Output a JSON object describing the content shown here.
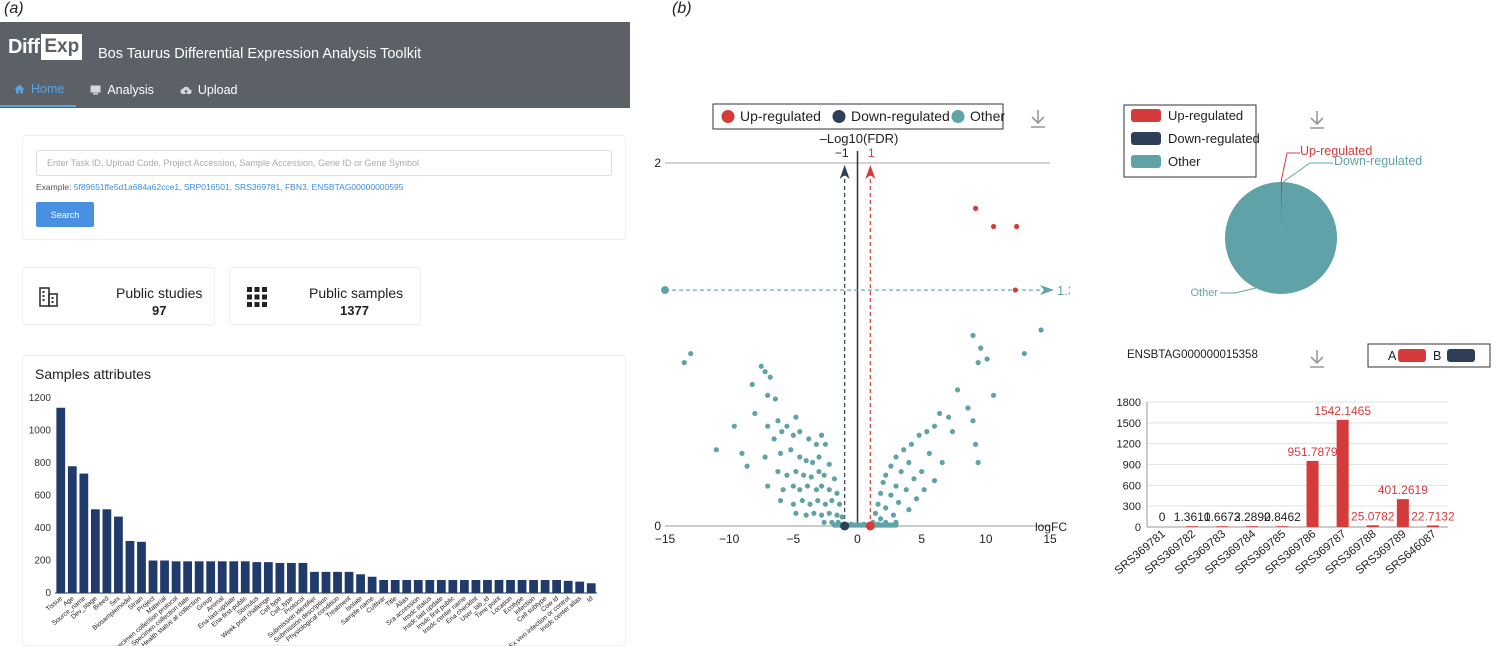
{
  "labels": {
    "a": "(a)",
    "b": "(b)"
  },
  "app": {
    "logo_part1": "Diff",
    "logo_part2": "Exp",
    "title": "Bos Taurus Differential Expression Analysis Toolkit",
    "tabs": [
      {
        "label": "Home",
        "icon": "home-icon",
        "active": true
      },
      {
        "label": "Analysis",
        "icon": "monitor-icon",
        "active": false
      },
      {
        "label": "Upload",
        "icon": "cloud-upload-icon",
        "active": false
      }
    ]
  },
  "search": {
    "placeholder": "Enter Task ID, Upload Code, Project Accession, Sample Accession, Gene ID or Gene Symbol",
    "value": "",
    "example_prefix": "Example:",
    "examples": [
      "5f89651ffe5d1a684a62cce1,",
      "SRP016501,",
      "SRS369781,",
      "FBN3,",
      "ENSBTAG00000000595"
    ],
    "button": "Search"
  },
  "stats": {
    "studies": {
      "label": "Public studies",
      "value": "97",
      "icon": "building-icon"
    },
    "samples": {
      "label": "Public samples",
      "value": "1377",
      "icon": "grid-icon"
    }
  },
  "attributes": {
    "title": "Samples attributes",
    "chart_data": {
      "type": "bar",
      "color": "#1f3a6b",
      "ylim": [
        0,
        1200
      ],
      "yticks": [
        "0",
        "200",
        "400",
        "600",
        "800",
        "1000",
        "1200"
      ],
      "categories": [
        "Tissue",
        "Age",
        "Source_name",
        "Dev_stage",
        "Breed",
        "Sex",
        "Biosamplemodel",
        "Strain",
        "Project",
        "Material",
        "Specimen collection protocol",
        "Specimen collection date",
        "Health status at collection",
        "Group",
        "Animal",
        "Ena-last-update",
        "Ena-first-public",
        "Stimulus",
        "Week post challenge",
        "Cell type",
        "Cell_type",
        "Protocol",
        "Submission identifier",
        "Submission description",
        "Physiological condition",
        "Treatment",
        "Isolate",
        "Sample name",
        "Cultivar",
        "Title",
        "Alias",
        "Sra accession",
        "Insdc status",
        "Insdc last update",
        "Insdc first public",
        "Insdc center name",
        "Ena checklist",
        "User_lab_id",
        "Time point",
        "Location",
        "Ecotype",
        "Infection",
        "Cell subtype",
        "Cow id",
        "Ex vivo infection or control",
        "Insdc center alias",
        "Id"
      ],
      "values": [
        1140,
        780,
        735,
        515,
        515,
        470,
        320,
        315,
        200,
        200,
        195,
        195,
        195,
        195,
        195,
        195,
        195,
        190,
        190,
        185,
        185,
        185,
        130,
        130,
        130,
        130,
        115,
        100,
        80,
        80,
        80,
        80,
        80,
        80,
        80,
        80,
        80,
        80,
        80,
        80,
        80,
        80,
        80,
        80,
        75,
        70,
        60
      ]
    }
  },
  "volcano": {
    "legend": [
      "Up-regulated",
      "Down-regulated",
      "Other"
    ],
    "colors": {
      "up": "#d63b3b",
      "down": "#2f3f57",
      "other": "#5fa3a8"
    },
    "download_icon": "download-icon",
    "chart_data": {
      "type": "scatter",
      "ylabel": "–Log10(FDR)",
      "xlabel": "logFC",
      "xlim": [
        -15,
        15
      ],
      "xticks": [
        "−15",
        "−10",
        "−5",
        "0",
        "5",
        "10",
        "15"
      ],
      "ylim": [
        0,
        2
      ],
      "yticks": [
        "0",
        "2"
      ],
      "neg_threshold_label": "−1",
      "pos_threshold_label": "1",
      "fdr_threshold_label": "1.3",
      "up": [
        [
          9.2,
          1.75
        ],
        [
          10.6,
          1.65
        ],
        [
          12.4,
          1.65
        ],
        [
          12.3,
          1.3
        ],
        [
          1.0,
          0.0
        ]
      ],
      "down": [
        [
          -1.0,
          0.0
        ]
      ],
      "other": [
        [
          -15.0,
          1.3
        ],
        [
          -13.0,
          0.95
        ],
        [
          -13.5,
          0.9
        ],
        [
          -7.5,
          0.88
        ],
        [
          -7.2,
          0.85
        ],
        [
          -6.8,
          0.82
        ],
        [
          -8.2,
          0.78
        ],
        [
          -7.0,
          0.72
        ],
        [
          -6.4,
          0.7
        ],
        [
          -8.0,
          0.62
        ],
        [
          -7.0,
          0.55
        ],
        [
          -6.2,
          0.58
        ],
        [
          -5.5,
          0.55
        ],
        [
          -4.8,
          0.6
        ],
        [
          -9.6,
          0.55
        ],
        [
          -6.5,
          0.48
        ],
        [
          -5.9,
          0.52
        ],
        [
          -5.0,
          0.5
        ],
        [
          -4.5,
          0.52
        ],
        [
          -3.8,
          0.48
        ],
        [
          -3.2,
          0.45
        ],
        [
          -2.8,
          0.5
        ],
        [
          -2.5,
          0.45
        ],
        [
          -11.0,
          0.42
        ],
        [
          -9.0,
          0.4
        ],
        [
          -7.2,
          0.38
        ],
        [
          -6.0,
          0.4
        ],
        [
          -5.2,
          0.42
        ],
        [
          -4.5,
          0.38
        ],
        [
          -4.0,
          0.36
        ],
        [
          -3.5,
          0.35
        ],
        [
          -3.0,
          0.38
        ],
        [
          -2.2,
          0.34
        ],
        [
          -8.6,
          0.33
        ],
        [
          -6.2,
          0.3
        ],
        [
          -5.5,
          0.28
        ],
        [
          -4.8,
          0.3
        ],
        [
          -4.2,
          0.28
        ],
        [
          -3.6,
          0.27
        ],
        [
          -3.0,
          0.3
        ],
        [
          -2.6,
          0.28
        ],
        [
          -1.8,
          0.26
        ],
        [
          -7.0,
          0.22
        ],
        [
          -5.8,
          0.2
        ],
        [
          -5.0,
          0.22
        ],
        [
          -4.5,
          0.2
        ],
        [
          -3.9,
          0.22
        ],
        [
          -3.2,
          0.2
        ],
        [
          -2.8,
          0.22
        ],
        [
          -2.2,
          0.2
        ],
        [
          -1.6,
          0.18
        ],
        [
          -6.0,
          0.14
        ],
        [
          -5.0,
          0.12
        ],
        [
          -4.3,
          0.14
        ],
        [
          -3.7,
          0.12
        ],
        [
          -3.1,
          0.14
        ],
        [
          -2.5,
          0.12
        ],
        [
          -2.0,
          0.14
        ],
        [
          -1.4,
          0.12
        ],
        [
          -4.8,
          0.07
        ],
        [
          -4.0,
          0.06
        ],
        [
          -3.4,
          0.07
        ],
        [
          -2.8,
          0.06
        ],
        [
          -2.2,
          0.07
        ],
        [
          -1.6,
          0.06
        ],
        [
          -1.2,
          0.05
        ],
        [
          -2.6,
          0.02
        ],
        [
          -2.0,
          0.02
        ],
        [
          -1.5,
          0.02
        ],
        [
          14.3,
          1.08
        ],
        [
          13.0,
          0.95
        ],
        [
          9.0,
          1.05
        ],
        [
          9.6,
          0.98
        ],
        [
          10.1,
          0.92
        ],
        [
          9.4,
          0.9
        ],
        [
          7.8,
          0.75
        ],
        [
          10.6,
          0.72
        ],
        [
          8.6,
          0.65
        ],
        [
          6.4,
          0.62
        ],
        [
          7.1,
          0.6
        ],
        [
          9.0,
          0.58
        ],
        [
          6.0,
          0.55
        ],
        [
          5.4,
          0.52
        ],
        [
          4.8,
          0.5
        ],
        [
          7.4,
          0.52
        ],
        [
          9.2,
          0.45
        ],
        [
          4.2,
          0.45
        ],
        [
          3.6,
          0.42
        ],
        [
          5.6,
          0.4
        ],
        [
          3.0,
          0.38
        ],
        [
          6.6,
          0.35
        ],
        [
          9.4,
          0.35
        ],
        [
          4.0,
          0.35
        ],
        [
          2.6,
          0.33
        ],
        [
          5.0,
          0.3
        ],
        [
          3.4,
          0.3
        ],
        [
          2.2,
          0.28
        ],
        [
          4.4,
          0.26
        ],
        [
          6.0,
          0.25
        ],
        [
          2.0,
          0.24
        ],
        [
          3.0,
          0.22
        ],
        [
          3.8,
          0.2
        ],
        [
          5.2,
          0.2
        ],
        [
          1.8,
          0.18
        ],
        [
          2.6,
          0.17
        ],
        [
          4.6,
          0.15
        ],
        [
          3.2,
          0.13
        ],
        [
          1.6,
          0.12
        ],
        [
          2.2,
          0.1
        ],
        [
          4.0,
          0.09
        ],
        [
          1.4,
          0.07
        ],
        [
          2.8,
          0.06
        ],
        [
          1.8,
          0.04
        ],
        [
          1.2,
          0.02
        ],
        [
          2.2,
          0.02
        ],
        [
          3.0,
          0.02
        ],
        [
          -0.5,
          0.01
        ],
        [
          0.5,
          0.01
        ],
        [
          -1.4,
          0.01
        ],
        [
          1.6,
          0.01
        ]
      ]
    }
  },
  "pie": {
    "legend": [
      "Up-regulated",
      "Down-regulated",
      "Other"
    ],
    "chart_data": {
      "type": "pie",
      "labels": [
        "Up-regulated",
        "Down-regulated",
        "Other"
      ],
      "values": [
        5,
        1,
        1372
      ],
      "colors": [
        "#d63b3b",
        "#2f3f57",
        "#5fa3a8"
      ]
    }
  },
  "gene_bar": {
    "gene": "ENSBTAG000000015358",
    "legend": [
      "A",
      "B"
    ],
    "colors": {
      "A": "#d63b3b",
      "B": "#2f3f57"
    },
    "chart_data": {
      "type": "bar",
      "categories": [
        "SRS369781",
        "SRS369782",
        "SRS369783",
        "SRS369784",
        "SRS369785",
        "SRS369786",
        "SRS369787",
        "SRS369788",
        "SRS369789",
        "SRS646087"
      ],
      "values": [
        0,
        1.361,
        1.6673,
        2.2892,
        0.8462,
        951.7879,
        1542.1465,
        25.0782,
        401.2619,
        22.7132
      ],
      "value_labels": [
        "0",
        "1.3610",
        "1.6673",
        "2.2892",
        "0.8462",
        "951.7879",
        "1542.1465",
        "25.0782",
        "401.2619",
        "22.7132"
      ],
      "ylim": [
        0,
        1800
      ],
      "yticks": [
        "0",
        "300",
        "600",
        "900",
        "1200",
        "1500",
        "1800"
      ]
    }
  }
}
